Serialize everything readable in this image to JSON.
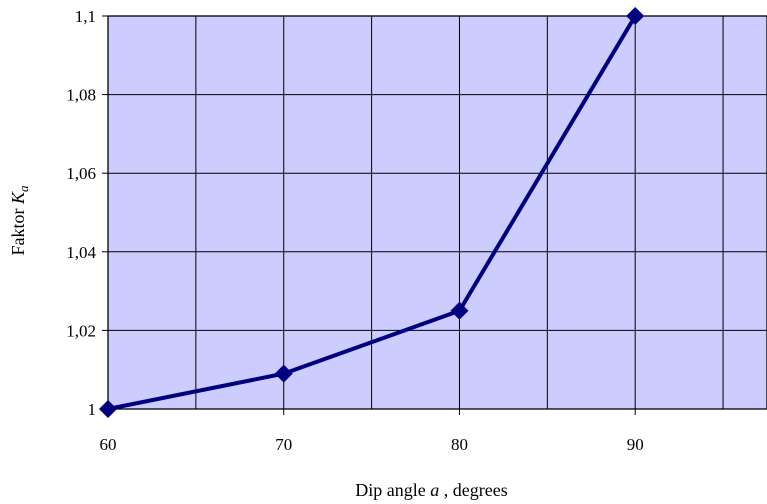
{
  "chart_data": {
    "type": "line",
    "x": [
      60,
      70,
      80,
      90
    ],
    "series": [
      {
        "values": [
          1.0,
          1.009,
          1.025,
          1.1
        ]
      }
    ],
    "xlim": [
      60,
      97.5
    ],
    "ylim": [
      1,
      1.1
    ],
    "x_ticks": [
      60,
      70,
      80,
      90
    ],
    "y_ticks": [
      1,
      1.02,
      1.04,
      1.06,
      1.08,
      1.1
    ],
    "x_tick_labels": [
      "60",
      "70",
      "80",
      "90"
    ],
    "y_tick_labels": [
      "1",
      "1,02",
      "1,04",
      "1,06",
      "1,08",
      "1,1"
    ],
    "x_grid_step": 5,
    "grid": true,
    "marker": "diamond",
    "xlabel": {
      "prefix": "Dip angle ",
      "symbol": "a",
      "suffix": " , degrees"
    },
    "ylabel": {
      "prefix": "Faktor  ",
      "symbol": "K",
      "subscript": "a"
    },
    "colors": {
      "plot_bg": "#ccccff",
      "line": "#000080",
      "grid": "#000000"
    }
  }
}
